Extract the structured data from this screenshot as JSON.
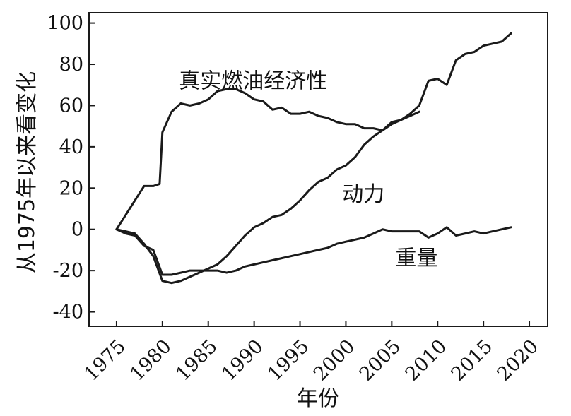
{
  "chart_data": {
    "type": "line",
    "xlabel": "年份",
    "ylabel": "从1975年以来看变化",
    "xlim": [
      1972,
      2022
    ],
    "ylim": [
      -47,
      105
    ],
    "x_ticks": [
      1975,
      1980,
      1985,
      1990,
      1995,
      2000,
      2005,
      2010,
      2015,
      2020
    ],
    "y_ticks": [
      -40,
      -20,
      0,
      20,
      40,
      60,
      80,
      100
    ],
    "grid": false,
    "legend": "none",
    "line_color": "#1a1a1a",
    "series": [
      {
        "name": "真实燃油经济性",
        "x": [
          1975,
          1976,
          1977,
          1978,
          1979,
          1979.7,
          1980,
          1981,
          1982,
          1983,
          1984,
          1985,
          1986,
          1987,
          1988,
          1989,
          1990,
          1991,
          1992,
          1993,
          1994,
          1995,
          1996,
          1997,
          1998,
          1999,
          2000,
          2001,
          2002,
          2003,
          2004,
          2005,
          2006,
          2007,
          2008
        ],
        "y": [
          0,
          7,
          14,
          21,
          21,
          22,
          47,
          57,
          61,
          60,
          61,
          63,
          67,
          68,
          68,
          66,
          63,
          62,
          58,
          59,
          56,
          56,
          57,
          55,
          54,
          52,
          51,
          51,
          49,
          49,
          48,
          51,
          53,
          55,
          57
        ]
      },
      {
        "name": "动力",
        "x": [
          1975,
          1976,
          1977,
          1978,
          1979,
          1980,
          1981,
          1982,
          1983,
          1984,
          1985,
          1986,
          1987,
          1988,
          1989,
          1990,
          1991,
          1992,
          1993,
          1994,
          1995,
          1996,
          1997,
          1998,
          1999,
          2000,
          2001,
          2002,
          2003,
          2004,
          2005,
          2006,
          2007,
          2008,
          2009,
          2010,
          2011,
          2012,
          2013,
          2014,
          2015,
          2016,
          2017,
          2018
        ],
        "y": [
          0,
          -1,
          -2,
          -7,
          -13,
          -25,
          -26,
          -25,
          -23,
          -21,
          -19,
          -17,
          -13,
          -8,
          -3,
          1,
          3,
          6,
          7,
          10,
          14,
          19,
          23,
          25,
          29,
          31,
          35,
          41,
          45,
          48,
          52,
          53,
          56,
          60,
          72,
          73,
          70,
          82,
          85,
          86,
          89,
          90,
          91,
          95
        ]
      },
      {
        "name": "重量",
        "x": [
          1975,
          1976,
          1977,
          1978,
          1979,
          1980,
          1981,
          1982,
          1983,
          1984,
          1985,
          1986,
          1987,
          1988,
          1989,
          1990,
          1991,
          1992,
          1993,
          1994,
          1995,
          1996,
          1997,
          1998,
          1999,
          2000,
          2001,
          2002,
          2003,
          2004,
          2005,
          2006,
          2007,
          2008,
          2009,
          2010,
          2011,
          2012,
          2013,
          2014,
          2015,
          2016,
          2017,
          2018
        ],
        "y": [
          0,
          -2,
          -3,
          -8,
          -10,
          -22,
          -22,
          -21,
          -20,
          -20,
          -20,
          -20,
          -21,
          -20,
          -18,
          -17,
          -16,
          -15,
          -14,
          -13,
          -12,
          -11,
          -10,
          -9,
          -7,
          -6,
          -5,
          -4,
          -2,
          0,
          -1,
          -1,
          -1,
          -1,
          -4,
          -2,
          1,
          -3,
          -2,
          -1,
          -2,
          -1,
          0,
          1
        ]
      }
    ],
    "annotations": [
      {
        "text": "真实燃油经济性",
        "x": 1981.8,
        "y": 72,
        "anchor": "start"
      },
      {
        "text": "动力",
        "x": 1999.6,
        "y": 17,
        "anchor": "start"
      },
      {
        "text": "重量",
        "x": 2007.7,
        "y": -14,
        "anchor": "middle"
      }
    ]
  }
}
